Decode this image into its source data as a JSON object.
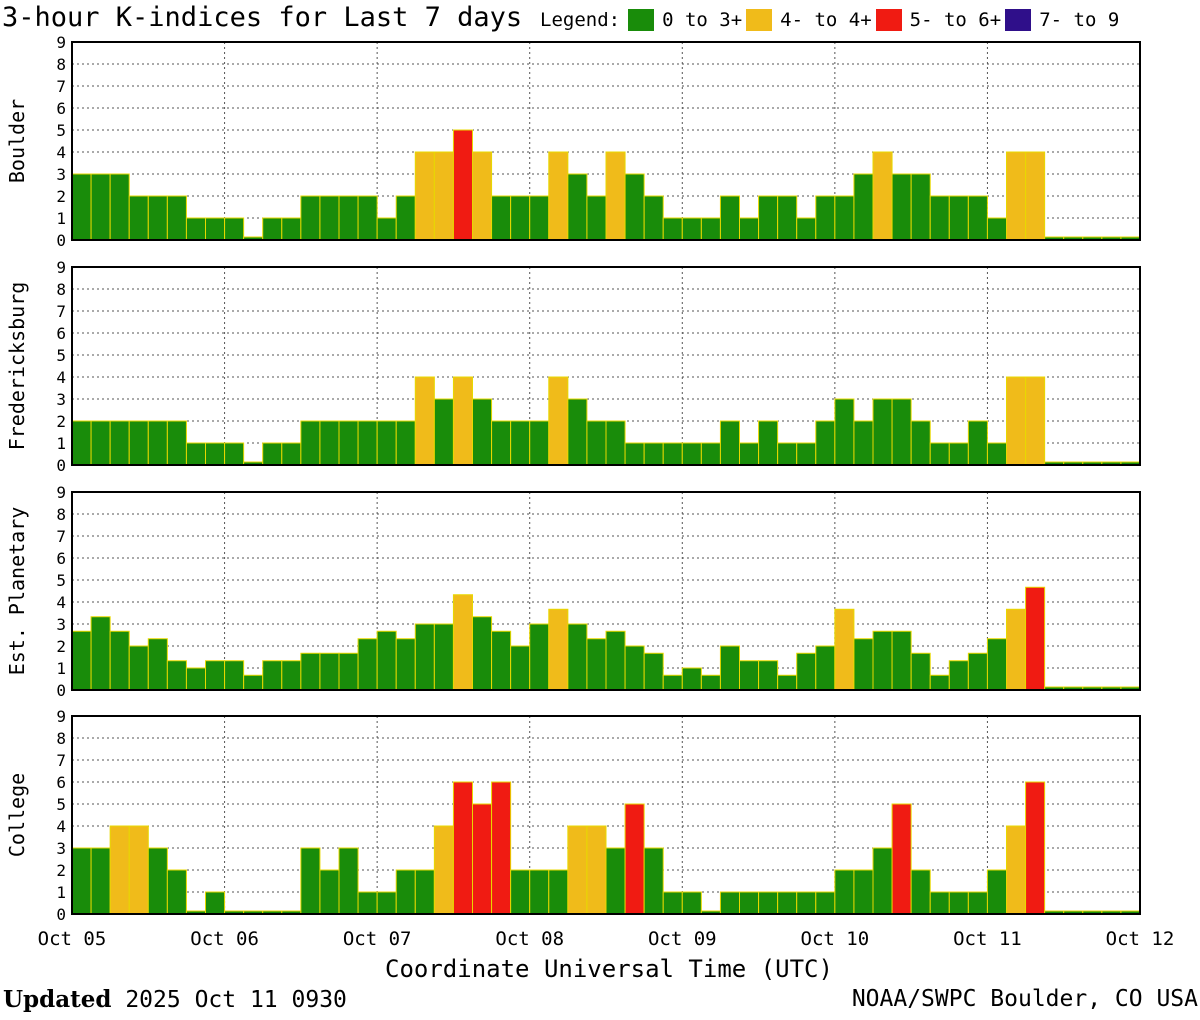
{
  "title": "3-hour K-indices for Last 7 days",
  "legend_label": "Legend:",
  "legend": [
    {
      "label": "0 to 3+",
      "color": "#198c0a"
    },
    {
      "label": "4- to 4+",
      "color": "#f0bb1a"
    },
    {
      "label": "5- to 6+",
      "color": "#f01b12"
    },
    {
      "label": "7- to 9",
      "color": "#2f0f8a"
    }
  ],
  "footer": {
    "updated_label": "Updated",
    "updated_value": "2025 Oct 11 0930",
    "credit": "NOAA/SWPC Boulder, CO USA"
  },
  "chart_data": {
    "type": "bar",
    "xlabel": "Coordinate Universal Time (UTC)",
    "x_ticks": [
      "Oct 05",
      "Oct 06",
      "Oct 07",
      "Oct 08",
      "Oct 09",
      "Oct 10",
      "Oct 11",
      "Oct 12"
    ],
    "y_ticks": [
      "0",
      "1",
      "2",
      "3",
      "4",
      "5",
      "6",
      "7",
      "8",
      "9"
    ],
    "ylim": [
      0,
      9
    ],
    "bins_per_day": 8,
    "color_thresholds": {
      "green_below": 3.67,
      "yellow_below": 4.67,
      "red_below": 6.67
    },
    "grid": true,
    "series": [
      {
        "name": "Boulder",
        "values": [
          3,
          3,
          3,
          2,
          2,
          2,
          1,
          1,
          1,
          0,
          1,
          1,
          2,
          2,
          2,
          2,
          1,
          2,
          4,
          4,
          5,
          4,
          2,
          2,
          2,
          4,
          3,
          2,
          4,
          3,
          2,
          1,
          1,
          1,
          2,
          1,
          2,
          2,
          1,
          2,
          2,
          3,
          4,
          3,
          3,
          2,
          2,
          2,
          1,
          4,
          4,
          0,
          0,
          0,
          0,
          0
        ]
      },
      {
        "name": "Fredericksburg",
        "values": [
          2,
          2,
          2,
          2,
          2,
          2,
          1,
          1,
          1,
          0,
          1,
          1,
          2,
          2,
          2,
          2,
          2,
          2,
          4,
          3,
          4,
          3,
          2,
          2,
          2,
          4,
          3,
          2,
          2,
          1,
          1,
          1,
          1,
          1,
          2,
          1,
          2,
          1,
          1,
          2,
          3,
          2,
          3,
          3,
          2,
          1,
          1,
          2,
          1,
          4,
          4,
          0,
          0,
          0,
          0,
          0
        ]
      },
      {
        "name": "Est. Planetary",
        "values": [
          2.67,
          3.33,
          2.67,
          2,
          2.33,
          1.33,
          1,
          1.33,
          1.33,
          0.67,
          1.33,
          1.33,
          1.67,
          1.67,
          1.67,
          2.33,
          2.67,
          2.33,
          3,
          3,
          4.33,
          3.33,
          2.67,
          2,
          3,
          3.67,
          3,
          2.33,
          2.67,
          2,
          1.67,
          0.67,
          1,
          0.67,
          2,
          1.33,
          1.33,
          0.67,
          1.67,
          2,
          3.67,
          2.33,
          2.67,
          2.67,
          1.67,
          0.67,
          1.33,
          1.67,
          2.33,
          3.67,
          4.67,
          0,
          0,
          0,
          0,
          0
        ]
      },
      {
        "name": "College",
        "values": [
          3,
          3,
          4,
          4,
          3,
          2,
          0,
          1,
          0,
          0,
          0,
          0,
          3,
          2,
          3,
          1,
          1,
          2,
          2,
          4,
          6,
          5,
          6,
          2,
          2,
          2,
          4,
          4,
          3,
          5,
          3,
          1,
          1,
          0,
          1,
          1,
          1,
          1,
          1,
          1,
          2,
          2,
          3,
          5,
          2,
          1,
          1,
          1,
          2,
          4,
          6,
          0,
          0,
          0,
          0,
          0
        ]
      }
    ]
  }
}
